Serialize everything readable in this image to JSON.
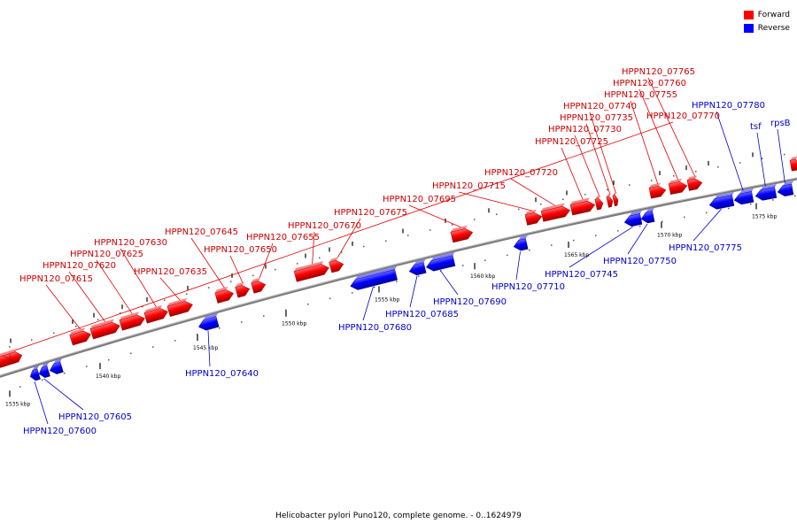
{
  "caption": "Helicobacter pylori Puno120, complete genome. - 0..1624979",
  "legend": [
    {
      "label": "Forward",
      "color": "#ff0000"
    },
    {
      "label": "Reverse",
      "color": "#0000ff"
    }
  ],
  "scale_labels": [
    "1535 kbp",
    "1540 kbp",
    "1545 kbp",
    "1550 kbp",
    "1555 kbp",
    "1560 kbp",
    "1565 kbp",
    "1570 kbp",
    "1575 kbp"
  ],
  "forward_genes": [
    {
      "label": "HPPN120_07615"
    },
    {
      "label": "HPPN120_07620"
    },
    {
      "label": "HPPN120_07625"
    },
    {
      "label": "HPPN120_07630"
    },
    {
      "label": "HPPN120_07635"
    },
    {
      "label": "HPPN120_07645"
    },
    {
      "label": "HPPN120_07650"
    },
    {
      "label": "HPPN120_07655"
    },
    {
      "label": "HPPN120_07670"
    },
    {
      "label": "HPPN120_07675"
    },
    {
      "label": "HPPN120_07695"
    },
    {
      "label": "HPPN120_07715"
    },
    {
      "label": "HPPN120_07720"
    },
    {
      "label": "HPPN120_07725"
    },
    {
      "label": "HPPN120_07730"
    },
    {
      "label": "HPPN120_07735"
    },
    {
      "label": "HPPN120_07740"
    },
    {
      "label": "HPPN120_07755"
    },
    {
      "label": "HPPN120_07760"
    },
    {
      "label": "HPPN120_07765"
    },
    {
      "label": "HPPN120_07770"
    }
  ],
  "reverse_genes": [
    {
      "label": "HPPN120_07600"
    },
    {
      "label": "HPPN120_07605"
    },
    {
      "label": "HPPN120_07640"
    },
    {
      "label": "HPPN120_07680"
    },
    {
      "label": "HPPN120_07685"
    },
    {
      "label": "HPPN120_07690"
    },
    {
      "label": "HPPN120_07710"
    },
    {
      "label": "HPPN120_07745"
    },
    {
      "label": "HPPN120_07750"
    },
    {
      "label": "HPPN120_07775"
    },
    {
      "label": "HPPN120_07780"
    },
    {
      "label": "tsf"
    },
    {
      "label": "rpsB"
    }
  ]
}
